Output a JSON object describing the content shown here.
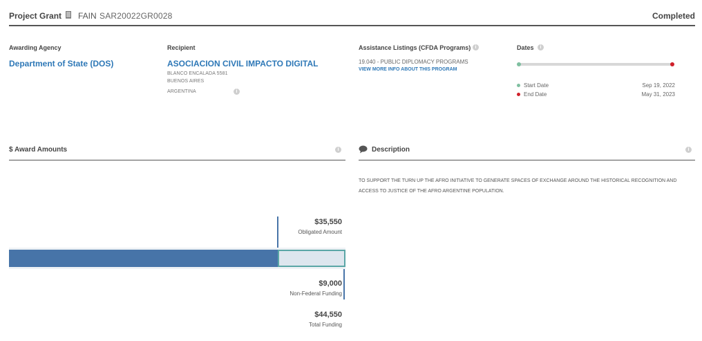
{
  "header": {
    "award_type": "Project Grant",
    "fain_label": "FAIN",
    "fain_value": "SAR20022GR0028",
    "status": "Completed"
  },
  "awarding_agency": {
    "label": "Awarding Agency",
    "name": "Department of State (DOS)"
  },
  "recipient": {
    "label": "Recipient",
    "name": "ASOCIACION CIVIL IMPACTO DIGITAL",
    "address_line1": "BLANCO ENCALADA 5581",
    "address_line2": "BUENOS AIRES",
    "country": "ARGENTINA"
  },
  "assistance_listings": {
    "label": "Assistance Listings (CFDA Programs)",
    "program": "19.040 - PUBLIC DIPLOMACY PROGRAMS",
    "link": "VIEW MORE INFO ABOUT THIS PROGRAM"
  },
  "dates": {
    "label": "Dates",
    "start_label": "Start Date",
    "start_value": "Sep 19, 2022",
    "end_label": "End Date",
    "end_value": "May 31, 2023",
    "progress_fraction": 1.0
  },
  "award_amounts": {
    "title": "$ Award Amounts",
    "obligated_value": "$35,550",
    "obligated_label": "Obligated Amount",
    "non_federal_value": "$9,000",
    "non_federal_label": "Non-Federal Funding",
    "total_value": "$44,550",
    "total_label": "Total Funding",
    "obligated_fraction_of_total": 0.798
  },
  "description": {
    "title": "Description",
    "text": "TO SUPPORT THE TURN UP THE AFRO INITIATIVE TO GENERATE SPACES OF EXCHANGE AROUND THE HISTORICAL RECOGNITION AND ACCESS TO JUSTICE OF THE AFRO ARGENTINE POPULATION."
  },
  "colors": {
    "link": "#2e78b7",
    "obligated_bar": "#4774a8",
    "non_federal_bar": "#dde6ee",
    "non_federal_border": "#5aa6a6",
    "start_dot": "#7fbfa0",
    "end_dot": "#d0202a"
  },
  "icons": {
    "book": "book-icon",
    "info": "info-icon",
    "comment": "comment-icon"
  }
}
